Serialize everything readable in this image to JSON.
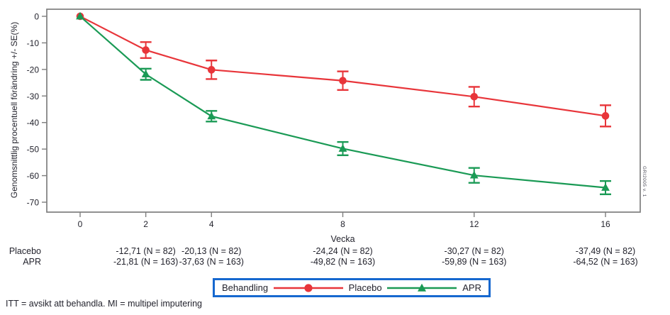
{
  "figure": {
    "footnote": "ITT = avsikt att behandla. MI = multipel imputering",
    "side_stamp": "GRI2005 v. 1"
  },
  "chart_data": {
    "type": "line",
    "title": "",
    "xlabel": "Vecka",
    "ylabel": "Genomsnittlig procentuell förändring +/- SE(%)",
    "xlim": [
      0,
      16
    ],
    "ylim": [
      -70,
      0
    ],
    "x_ticks": [
      0,
      2,
      4,
      8,
      12,
      16
    ],
    "y_ticks": [
      0,
      -10,
      -20,
      -30,
      -40,
      -50,
      -60,
      -70
    ],
    "grid": "off",
    "frame_color": "#7e7e7e",
    "text_color": "#23232d",
    "legend": {
      "title": "Behandling",
      "position": "bottom-center",
      "border_color": "#1668cf"
    },
    "series": [
      {
        "name": "Placebo",
        "color": "#e8353a",
        "marker": "circle",
        "x": [
          0,
          2,
          4,
          8,
          12,
          16
        ],
        "y": [
          0,
          -12.71,
          -20.13,
          -24.24,
          -30.27,
          -37.49
        ],
        "se": [
          0,
          3.0,
          3.5,
          3.5,
          3.7,
          4.0
        ],
        "n": 82
      },
      {
        "name": "APR",
        "color": "#1a9a55",
        "marker": "triangle",
        "x": [
          0,
          2,
          4,
          8,
          12,
          16
        ],
        "y": [
          0,
          -21.81,
          -37.63,
          -49.82,
          -59.89,
          -64.52
        ],
        "se": [
          0,
          2.1,
          2.0,
          2.5,
          2.8,
          2.5
        ],
        "n": 163
      }
    ],
    "table": {
      "value_weeks": [
        2,
        4,
        8,
        12,
        16
      ],
      "rows": [
        {
          "label": "Placebo",
          "values": [
            "-12,71 (N = 82)",
            "-20,13 (N = 82)",
            "-24,24 (N = 82)",
            "-30,27 (N = 82)",
            "-37,49 (N = 82)"
          ]
        },
        {
          "label": "APR",
          "values": [
            "-21,81 (N = 163)",
            "-37,63 (N = 163)",
            "-49,82 (N = 163)",
            "-59,89 (N = 163)",
            "-64,52 (N = 163)"
          ]
        }
      ]
    }
  }
}
